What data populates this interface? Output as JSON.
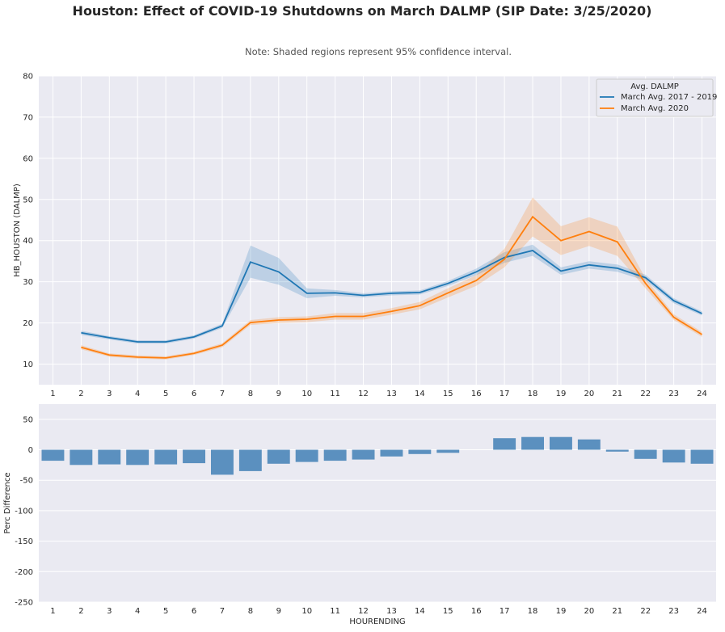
{
  "title": "Houston: Effect of COVID-19 Shutdowns on March DALMP (SIP Date: 3/25/2020)",
  "subtitle": "Note: Shaded regions represent 95% confidence interval.",
  "colors": {
    "background": "#eaeaf2",
    "grid": "#ffffff",
    "series_a": "#1f77b4",
    "series_b": "#ff7f0e",
    "bars": "#5b90bf"
  },
  "chart_data": [
    {
      "type": "line",
      "xlabel": "",
      "ylabel": "HB_HOUSTON (DALMP)",
      "xlim": [
        0.5,
        24.5
      ],
      "ylim": [
        5,
        80
      ],
      "x_ticks": [
        1,
        2,
        3,
        4,
        5,
        6,
        7,
        8,
        9,
        10,
        11,
        12,
        13,
        14,
        15,
        16,
        17,
        18,
        19,
        20,
        21,
        22,
        23,
        24
      ],
      "y_ticks": [
        10,
        20,
        30,
        40,
        50,
        60,
        70,
        80
      ],
      "grid": true,
      "legend": {
        "title": "Avg. DALMP",
        "position": "top-right"
      },
      "series": [
        {
          "name": "March Avg. 2017 - 2019",
          "x": [
            2,
            3,
            4,
            5,
            6,
            7,
            8,
            9,
            10,
            11,
            12,
            13,
            14,
            15,
            16,
            17,
            18,
            19,
            20,
            21,
            22,
            23,
            24
          ],
          "y": [
            17.6,
            16.4,
            15.4,
            15.4,
            16.6,
            19.3,
            34.8,
            32.4,
            27.2,
            27.3,
            26.7,
            27.2,
            27.4,
            29.6,
            32.4,
            35.9,
            37.6,
            32.6,
            34.1,
            33.3,
            31,
            25.4,
            22.3
          ],
          "ci_low": [
            17.1,
            16.0,
            15.0,
            15.0,
            16.2,
            18.8,
            31.0,
            29.3,
            26.0,
            26.6,
            26.2,
            26.7,
            26.9,
            29.0,
            31.6,
            34.6,
            36.3,
            31.7,
            33.2,
            32.4,
            30.3,
            24.8,
            21.8
          ],
          "ci_high": [
            18.1,
            16.8,
            15.8,
            15.8,
            17.0,
            19.8,
            38.8,
            35.8,
            28.4,
            28.0,
            27.2,
            27.7,
            27.9,
            30.2,
            33.2,
            37.2,
            39.0,
            33.5,
            35.0,
            34.2,
            31.7,
            26.0,
            22.8
          ]
        },
        {
          "name": "March Avg. 2020",
          "x": [
            2,
            3,
            4,
            5,
            6,
            7,
            8,
            9,
            10,
            11,
            12,
            13,
            14,
            15,
            16,
            17,
            18,
            19,
            20,
            21,
            22,
            23,
            24
          ],
          "y": [
            14.1,
            12.2,
            11.7,
            11.5,
            12.6,
            14.6,
            20.1,
            20.7,
            20.9,
            21.6,
            21.6,
            22.8,
            24.2,
            27.3,
            30.3,
            35.5,
            45.8,
            40.0,
            42.2,
            39.7,
            29.6,
            21.4,
            17.2
          ],
          "ci_low": [
            13.6,
            11.8,
            11.3,
            11.1,
            12.2,
            14.1,
            19.5,
            20.0,
            20.2,
            20.8,
            20.8,
            22.0,
            23.3,
            26.2,
            29.0,
            33.5,
            41.0,
            36.5,
            38.7,
            36.3,
            28.4,
            20.7,
            16.6
          ],
          "ci_high": [
            14.6,
            12.6,
            12.1,
            11.9,
            13.0,
            15.1,
            20.7,
            21.4,
            21.6,
            22.4,
            22.4,
            23.6,
            25.1,
            28.4,
            31.6,
            38.0,
            50.5,
            43.5,
            45.7,
            43.4,
            30.8,
            22.1,
            17.8
          ]
        }
      ]
    },
    {
      "type": "bar",
      "xlabel": "HOURENDING",
      "ylabel": "Perc Difference",
      "categories": [
        "1",
        "2",
        "3",
        "4",
        "5",
        "6",
        "7",
        "8",
        "9",
        "10",
        "11",
        "12",
        "13",
        "14",
        "15",
        "16",
        "17",
        "18",
        "19",
        "20",
        "21",
        "22",
        "23",
        "24"
      ],
      "values": [
        -18,
        -25,
        -24,
        -25,
        -24,
        -22,
        -41,
        -35,
        -23,
        -20,
        -18,
        -16,
        -11,
        -7,
        -5,
        0,
        19,
        21,
        21,
        17,
        -3,
        -15,
        -21,
        -23
      ],
      "ylim": [
        -250,
        75
      ],
      "y_ticks": [
        50,
        0,
        -50,
        -100,
        -150,
        -200,
        -250
      ],
      "grid": true
    }
  ]
}
